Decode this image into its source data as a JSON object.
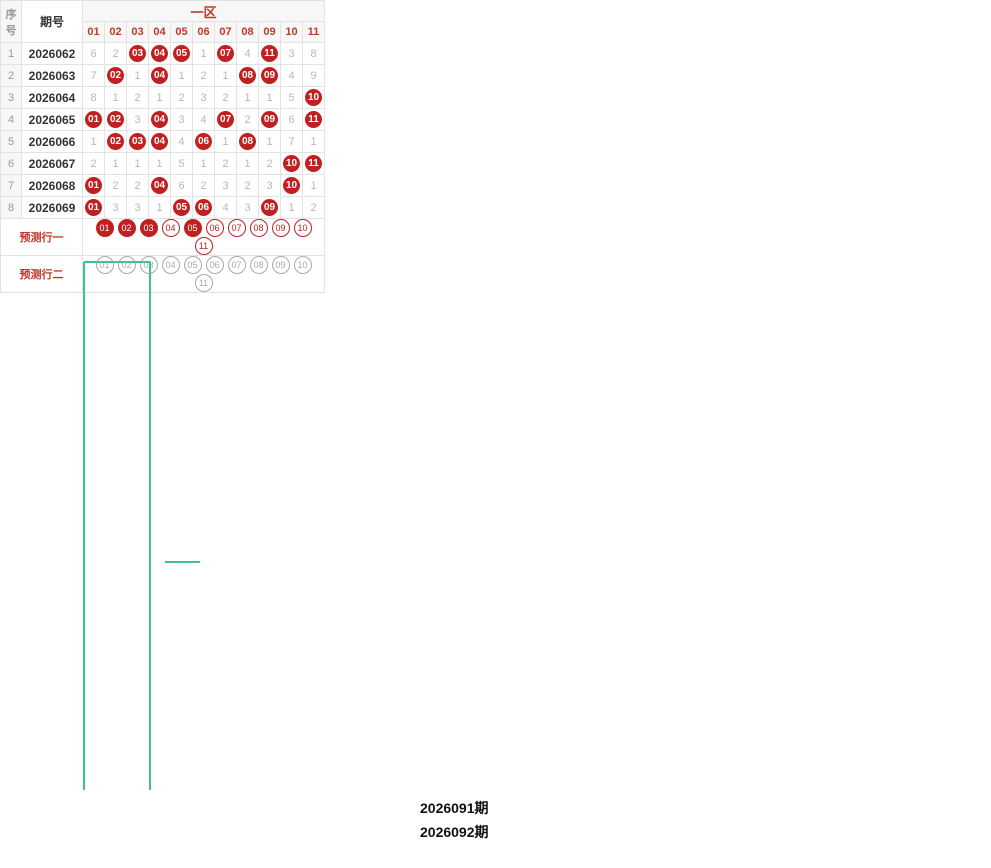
{
  "chart_data": {
    "type": "table",
    "title": "一区",
    "columns": {
      "seq": "序号",
      "period": "期号"
    },
    "numbers": [
      "01",
      "02",
      "03",
      "04",
      "05",
      "06",
      "07",
      "08",
      "09",
      "10",
      "11"
    ],
    "rows": [
      {
        "seq": "1",
        "period": "2026062",
        "cells": [
          "6",
          "2",
          "03",
          "04",
          "05",
          "1",
          "07",
          "4",
          "11",
          "3",
          "8"
        ]
      },
      {
        "seq": "2",
        "period": "2026063",
        "cells": [
          "7",
          "02",
          "1",
          "04",
          "1",
          "2",
          "1",
          "08",
          "09",
          "4",
          "9"
        ]
      },
      {
        "seq": "3",
        "period": "2026064",
        "cells": [
          "8",
          "1",
          "2",
          "1",
          "2",
          "3",
          "2",
          "1",
          "1",
          "5",
          "10"
        ]
      },
      {
        "seq": "4",
        "period": "2026065",
        "cells": [
          "01",
          "02",
          "3",
          "04",
          "3",
          "4",
          "07",
          "2",
          "09",
          "6",
          "11"
        ]
      },
      {
        "seq": "5",
        "period": "2026066",
        "cells": [
          "1",
          "02",
          "03",
          "04",
          "4",
          "06",
          "1",
          "08",
          "1",
          "7",
          "1"
        ]
      },
      {
        "seq": "6",
        "period": "2026067",
        "cells": [
          "2",
          "1",
          "1",
          "1",
          "5",
          "1",
          "2",
          "1",
          "2",
          "10",
          "11"
        ]
      },
      {
        "seq": "7",
        "period": "2026068",
        "cells": [
          "01",
          "2",
          "2",
          "04",
          "6",
          "2",
          "3",
          "2",
          "3",
          "10",
          "1"
        ]
      },
      {
        "seq": "8",
        "period": "2026069",
        "cells": [
          "01",
          "3",
          "3",
          "1",
          "05",
          "06",
          "4",
          "3",
          "09",
          "1",
          "2"
        ]
      }
    ],
    "predict_labels": [
      "预测行一",
      "预测行二"
    ],
    "predict_one_selected": [
      "01",
      "02",
      "03",
      "05"
    ],
    "annotations": [
      "2026091期",
      "2026092期"
    ]
  }
}
